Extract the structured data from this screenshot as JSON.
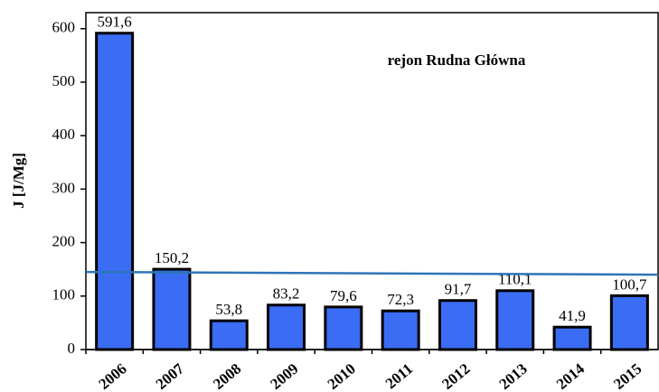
{
  "chart_data": {
    "type": "bar",
    "y_label": "J [J/Mg]",
    "annotation": "rejon Rudna Główna",
    "categories": [
      "2006",
      "2007",
      "2008",
      "2009",
      "2010",
      "2011",
      "2012",
      "2013",
      "2014",
      "2015"
    ],
    "values": [
      591.6,
      150.2,
      53.8,
      83.2,
      79.6,
      72.3,
      91.7,
      110.1,
      41.9,
      100.7
    ],
    "value_labels": [
      "591,6",
      "150,2",
      "53,8",
      "83,2",
      "79,6",
      "72,3",
      "91,7",
      "110,1",
      "41,9",
      "100,7"
    ],
    "color": "#3a6cf4",
    "trend_line": {
      "color": "#2e75b6",
      "values": [
        145,
        140
      ]
    },
    "ylim": [
      0,
      630
    ],
    "yticks": [
      0,
      100,
      200,
      300,
      400,
      500,
      600
    ]
  }
}
